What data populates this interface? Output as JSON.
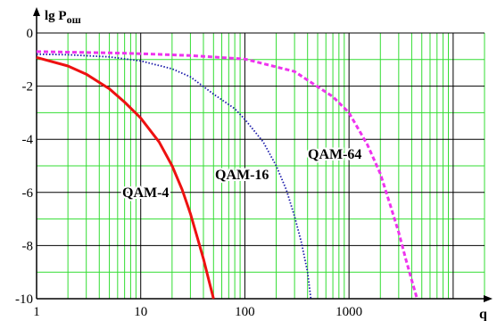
{
  "chart_data": {
    "type": "line",
    "title": "",
    "ylabel": "lg P",
    "ylabel_sub": "ош",
    "xlabel": "q",
    "x_scale": "log",
    "xlim": [
      1,
      20000
    ],
    "ylim": [
      -10,
      0
    ],
    "x_ticks": [
      1,
      10,
      100,
      1000
    ],
    "x_tick_labels": [
      "1",
      "10",
      "100",
      "1000"
    ],
    "y_ticks": [
      0,
      -2,
      -4,
      -6,
      -8,
      -10
    ],
    "y_tick_labels": [
      "0",
      "-2",
      "-4",
      "-6",
      "-8",
      "-10"
    ],
    "grid": {
      "major_x": true,
      "minor_x": true,
      "major_y": true,
      "minor_y": true
    },
    "colors": {
      "grid_minor": "#33dd33",
      "grid_major": "#000000",
      "axis": "#000000"
    },
    "series": [
      {
        "name": "QAM-4",
        "color": "#ee1111",
        "style": "solid",
        "x": [
          1,
          2,
          3,
          5,
          7,
          10,
          15,
          20,
          25,
          30,
          35,
          40,
          45,
          50
        ],
        "y": [
          -0.92,
          -1.24,
          -1.55,
          -2.1,
          -2.6,
          -3.2,
          -4.1,
          -5.0,
          -5.9,
          -6.8,
          -7.7,
          -8.5,
          -9.3,
          -10.0
        ]
      },
      {
        "name": "QAM-16",
        "color": "#1a1aaa",
        "style": "dotted",
        "x": [
          1,
          2,
          5,
          10,
          20,
          30,
          50,
          80,
          100,
          150,
          200,
          250,
          300,
          350,
          400,
          430
        ],
        "y": [
          -0.8,
          -0.82,
          -0.9,
          -1.05,
          -1.35,
          -1.65,
          -2.3,
          -2.85,
          -3.25,
          -4.1,
          -5.0,
          -5.9,
          -6.9,
          -7.9,
          -9.0,
          -10.0
        ]
      },
      {
        "name": "QAM-64",
        "color": "#ee33ee",
        "style": "dashed",
        "x": [
          1,
          2,
          5,
          10,
          30,
          100,
          300,
          700,
          1000,
          1500,
          2000,
          2500,
          3000,
          3500,
          4000,
          4500
        ],
        "y": [
          -0.7,
          -0.72,
          -0.75,
          -0.78,
          -0.85,
          -0.98,
          -1.45,
          -2.4,
          -3.0,
          -4.2,
          -5.3,
          -6.5,
          -7.5,
          -8.5,
          -9.3,
          -10.0
        ]
      }
    ],
    "annotations": [
      {
        "text": "QAM-4",
        "series": "QAM-4"
      },
      {
        "text": "QAM-16",
        "series": "QAM-16"
      },
      {
        "text": "QAM-64",
        "series": "QAM-64"
      }
    ]
  }
}
